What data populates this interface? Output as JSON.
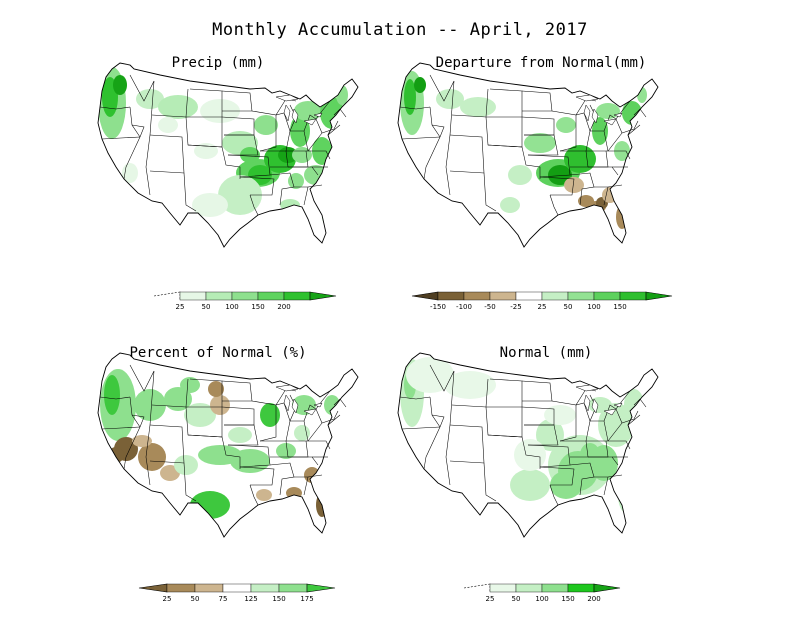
{
  "title": "Monthly Accumulation -- April, 2017",
  "panels": [
    {
      "id": "precip",
      "title": "Precip (mm)",
      "legend": {
        "ticks": [
          "25",
          "50",
          "100",
          "150",
          "200"
        ],
        "colors": [
          "#ffffff",
          "#e6f7e6",
          "#b6ecb6",
          "#8ee08e",
          "#5fd35f",
          "#2fc12f",
          "#16a316"
        ]
      }
    },
    {
      "id": "departure",
      "title": "Departure from Normal(mm)",
      "legend": {
        "ticks": [
          "-150",
          "-100",
          "-50",
          "-25",
          "25",
          "50",
          "100",
          "150"
        ],
        "colors": [
          "#4f3e22",
          "#7a6137",
          "#a88a5a",
          "#cdb58f",
          "#ffffff",
          "#c5efc5",
          "#93e293",
          "#5dd15d",
          "#2fbf2f",
          "#139e13"
        ]
      }
    },
    {
      "id": "percent",
      "title": "Percent of Normal (%)",
      "legend": {
        "ticks": [
          "25",
          "50",
          "75",
          "125",
          "150",
          "175"
        ],
        "colors": [
          "#7a6137",
          "#a88a5a",
          "#cdb58f",
          "#ffffff",
          "#c5efc5",
          "#8ee08e",
          "#3ec83e"
        ]
      }
    },
    {
      "id": "normal",
      "title": "Normal (mm)",
      "legend": {
        "ticks": [
          "25",
          "50",
          "100",
          "150",
          "200"
        ],
        "colors": [
          "#ffffff",
          "#e8f8e8",
          "#c4efc4",
          "#8ee08e",
          "#1ec71e",
          "#16a316"
        ]
      }
    }
  ]
}
